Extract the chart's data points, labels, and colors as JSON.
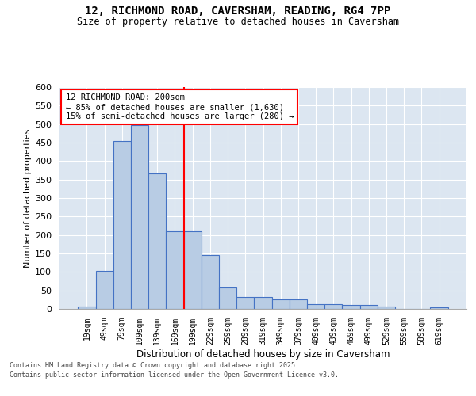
{
  "title_line1": "12, RICHMOND ROAD, CAVERSHAM, READING, RG4 7PP",
  "title_line2": "Size of property relative to detached houses in Caversham",
  "xlabel": "Distribution of detached houses by size in Caversham",
  "ylabel": "Number of detached properties",
  "categories": [
    "19sqm",
    "49sqm",
    "79sqm",
    "109sqm",
    "139sqm",
    "169sqm",
    "199sqm",
    "229sqm",
    "259sqm",
    "289sqm",
    "319sqm",
    "349sqm",
    "379sqm",
    "409sqm",
    "439sqm",
    "469sqm",
    "499sqm",
    "529sqm",
    "559sqm",
    "589sqm",
    "619sqm"
  ],
  "values": [
    7,
    103,
    455,
    497,
    367,
    211,
    211,
    145,
    57,
    33,
    33,
    25,
    25,
    13,
    13,
    10,
    10,
    7,
    0,
    0,
    5
  ],
  "bar_color": "#b8cce4",
  "bar_edge_color": "#4472c4",
  "background_color": "#dce6f1",
  "grid_color": "#ffffff",
  "ylim": [
    0,
    600
  ],
  "yticks": [
    0,
    50,
    100,
    150,
    200,
    250,
    300,
    350,
    400,
    450,
    500,
    550,
    600
  ],
  "annotation_text": "12 RICHMOND ROAD: 200sqm\n← 85% of detached houses are smaller (1,630)\n15% of semi-detached houses are larger (280) →",
  "vline_x_index": 6,
  "footer_line1": "Contains HM Land Registry data © Crown copyright and database right 2025.",
  "footer_line2": "Contains public sector information licensed under the Open Government Licence v3.0."
}
